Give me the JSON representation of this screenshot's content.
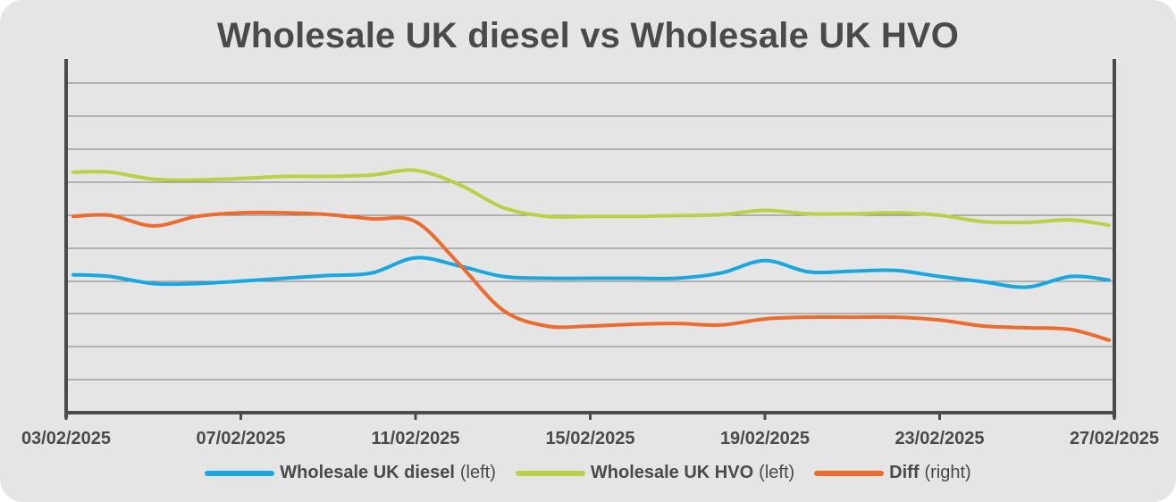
{
  "chart_data": {
    "type": "line",
    "title": "Wholesale UK diesel vs Wholesale UK HVO",
    "x_ticks": [
      "03/02/2025",
      "07/02/2025",
      "11/02/2025",
      "15/02/2025",
      "19/02/2025",
      "23/02/2025",
      "27/02/2025"
    ],
    "x_range": [
      "03/02/2025",
      "27/02/2025"
    ],
    "y_axis_labels": "none printed",
    "grid": "horizontal",
    "legend_position": "bottom",
    "series": [
      {
        "name": "Wholesale UK diesel",
        "axis": "(left)",
        "color": "#18a7de",
        "points": [
          [
            "03/02/2025",
            3.9
          ],
          [
            "04/02/2025",
            3.85
          ],
          [
            "05/02/2025",
            3.65
          ],
          [
            "06/02/2025",
            3.65
          ],
          [
            "07/02/2025",
            3.72
          ],
          [
            "08/02/2025",
            3.8
          ],
          [
            "09/02/2025",
            3.88
          ],
          [
            "10/02/2025",
            3.95
          ],
          [
            "11/02/2025",
            4.38
          ],
          [
            "12/02/2025",
            4.15
          ],
          [
            "13/02/2025",
            3.85
          ],
          [
            "14/02/2025",
            3.8
          ],
          [
            "15/02/2025",
            3.8
          ],
          [
            "16/02/2025",
            3.8
          ],
          [
            "17/02/2025",
            3.8
          ],
          [
            "18/02/2025",
            3.95
          ],
          [
            "19/02/2025",
            4.3
          ],
          [
            "20/02/2025",
            3.98
          ],
          [
            "21/02/2025",
            4.0
          ],
          [
            "22/02/2025",
            4.02
          ],
          [
            "23/02/2025",
            3.85
          ],
          [
            "24/02/2025",
            3.7
          ],
          [
            "25/02/2025",
            3.55
          ],
          [
            "26/02/2025",
            3.85
          ],
          [
            "27/02/2025",
            3.75
          ]
        ]
      },
      {
        "name": "Wholesale UK HVO",
        "axis": "(left)",
        "color": "#bcd046",
        "points": [
          [
            "03/02/2025",
            6.8
          ],
          [
            "04/02/2025",
            6.8
          ],
          [
            "05/02/2025",
            6.6
          ],
          [
            "06/02/2025",
            6.58
          ],
          [
            "07/02/2025",
            6.62
          ],
          [
            "08/02/2025",
            6.68
          ],
          [
            "09/02/2025",
            6.68
          ],
          [
            "10/02/2025",
            6.72
          ],
          [
            "11/02/2025",
            6.85
          ],
          [
            "12/02/2025",
            6.45
          ],
          [
            "13/02/2025",
            5.8
          ],
          [
            "14/02/2025",
            5.55
          ],
          [
            "15/02/2025",
            5.55
          ],
          [
            "16/02/2025",
            5.55
          ],
          [
            "17/02/2025",
            5.57
          ],
          [
            "18/02/2025",
            5.6
          ],
          [
            "19/02/2025",
            5.72
          ],
          [
            "20/02/2025",
            5.62
          ],
          [
            "21/02/2025",
            5.62
          ],
          [
            "22/02/2025",
            5.65
          ],
          [
            "23/02/2025",
            5.58
          ],
          [
            "24/02/2025",
            5.4
          ],
          [
            "25/02/2025",
            5.38
          ],
          [
            "26/02/2025",
            5.45
          ],
          [
            "27/02/2025",
            5.3
          ]
        ]
      },
      {
        "name": "Diff",
        "axis": "(right)",
        "color": "#ec6b2d",
        "points": [
          [
            "03/02/2025",
            5.55
          ],
          [
            "04/02/2025",
            5.58
          ],
          [
            "05/02/2025",
            5.28
          ],
          [
            "06/02/2025",
            5.55
          ],
          [
            "07/02/2025",
            5.65
          ],
          [
            "08/02/2025",
            5.65
          ],
          [
            "09/02/2025",
            5.6
          ],
          [
            "10/02/2025",
            5.48
          ],
          [
            "11/02/2025",
            5.4
          ],
          [
            "12/02/2025",
            4.2
          ],
          [
            "13/02/2025",
            2.9
          ],
          [
            "14/02/2025",
            2.45
          ],
          [
            "15/02/2025",
            2.45
          ],
          [
            "16/02/2025",
            2.5
          ],
          [
            "17/02/2025",
            2.52
          ],
          [
            "18/02/2025",
            2.48
          ],
          [
            "19/02/2025",
            2.65
          ],
          [
            "20/02/2025",
            2.7
          ],
          [
            "21/02/2025",
            2.7
          ],
          [
            "22/02/2025",
            2.7
          ],
          [
            "23/02/2025",
            2.62
          ],
          [
            "24/02/2025",
            2.45
          ],
          [
            "25/02/2025",
            2.4
          ],
          [
            "26/02/2025",
            2.35
          ],
          [
            "27/02/2025",
            2.05
          ]
        ]
      }
    ]
  }
}
